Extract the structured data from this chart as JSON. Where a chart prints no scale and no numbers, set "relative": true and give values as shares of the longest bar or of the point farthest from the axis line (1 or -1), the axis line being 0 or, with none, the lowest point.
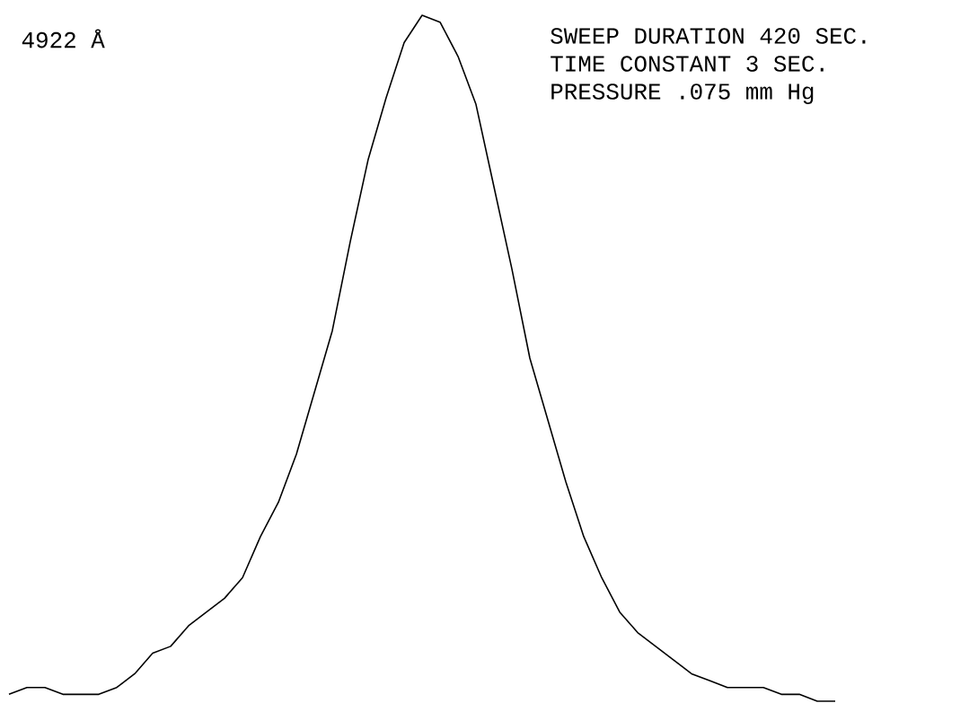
{
  "chart_data": {
    "type": "line",
    "relative": true,
    "title": "4922 Å",
    "color": "#000000",
    "annotations": [
      "SWEEP DURATION 420 SEC.",
      "TIME CONSTANT 3 SEC.",
      "PRESSURE .075 mm Hg"
    ],
    "categories": [
      null,
      null,
      null,
      null,
      null,
      null,
      null,
      null,
      null,
      null,
      null,
      null,
      null,
      null,
      null,
      null,
      null,
      null,
      null,
      null,
      null,
      null,
      null,
      null,
      null,
      null,
      null,
      null,
      null,
      null,
      null,
      null,
      null,
      null,
      null,
      null,
      null,
      null,
      null,
      null,
      null,
      null,
      null,
      null,
      null,
      null,
      null
    ],
    "values": [
      0.01,
      0.02,
      0.02,
      0.01,
      0.01,
      0.01,
      0.02,
      0.04,
      0.07,
      0.08,
      0.11,
      0.13,
      0.15,
      0.18,
      0.24,
      0.29,
      0.36,
      0.45,
      0.54,
      0.67,
      0.79,
      0.88,
      0.96,
      1,
      0.99,
      0.94,
      0.87,
      0.75,
      0.63,
      0.5,
      0.41,
      0.32,
      0.24,
      0.18,
      0.13,
      0.1,
      0.08,
      0.06,
      0.04,
      0.03,
      0.02,
      0.02,
      0.02,
      0.01,
      0.01,
      0,
      0
    ]
  }
}
